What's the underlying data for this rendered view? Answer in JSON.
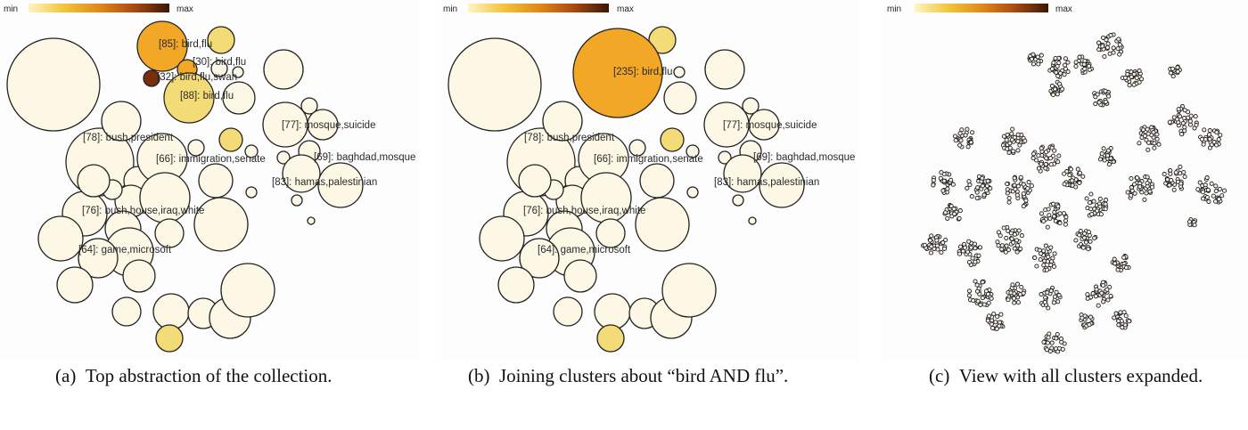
{
  "legend": {
    "min_label": "min",
    "max_label": "max"
  },
  "colors": {
    "low": "#fdf8e6",
    "mid": "#f3dc78",
    "high": "#f2a726",
    "max": "#7a2d0c",
    "stroke": "#222222"
  },
  "panels": [
    {
      "id": "a",
      "caption_tag": "(a)",
      "caption": "Top abstraction of the collection.",
      "labels": [
        "[85]: bird,flu",
        "[30]: bird,flu",
        "[32]: bird,flu,swan",
        "[88]: bird,flu",
        "[78]: bush,president",
        "[77]: mosque,suicide",
        "[66]: immigration,senate",
        "[69]: baghdad,mosque",
        "[83]: hamas,palestinian",
        "[76]: bush,house,iraq,white",
        "[64]: game,microsoft"
      ]
    },
    {
      "id": "b",
      "caption_tag": "(b)",
      "caption": "Joining clusters about “bird AND flu”.",
      "labels": [
        "[235]: bird,flu",
        "[78]: bush,president",
        "[77]: mosque,suicide",
        "[66]: immigration,senate",
        "[69]: baghdad,mosque",
        "[83]: hamas,palestinian",
        "[76]: bush,house,iraq,white",
        "[64]: game,microsoft"
      ]
    },
    {
      "id": "c",
      "caption_tag": "(c)",
      "caption": "View with all clusters expanded.",
      "labels": []
    }
  ]
}
